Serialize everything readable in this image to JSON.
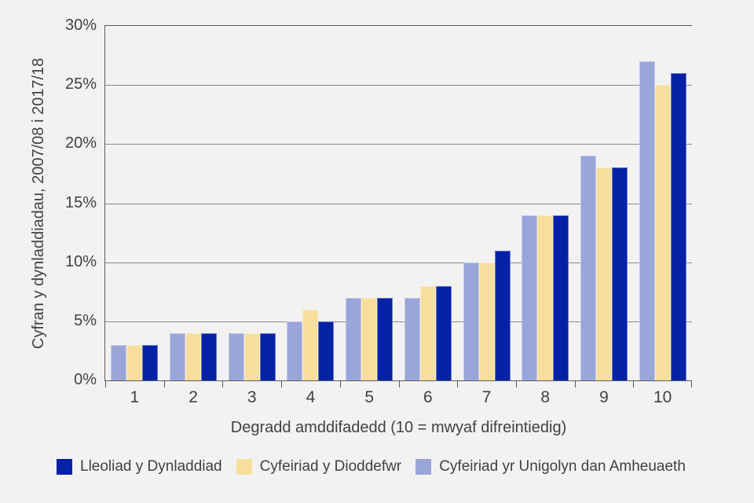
{
  "style": {
    "background": "#f2f2f2",
    "grid_color": "#8b8b8b",
    "axis_color": "#5b5b5b",
    "text_color": "#3f4145"
  },
  "chart_data": {
    "type": "bar",
    "title": "",
    "xlabel": "Degradd amddifadedd (10 = mwyaf difreintiedig)",
    "ylabel": "Cyfran y dynladdiadau, 2007/08 i 2017/18",
    "categories": [
      "1",
      "2",
      "3",
      "4",
      "5",
      "6",
      "7",
      "8",
      "9",
      "10"
    ],
    "series": [
      {
        "name": "Lleoliad y Dynladdiad",
        "color": "#0522a6",
        "values": [
          3,
          4,
          4,
          5,
          7,
          8,
          11,
          14,
          18,
          26
        ]
      },
      {
        "name": "Cyfeiriad y Dioddefwr",
        "color": "#f6df9d",
        "values": [
          3,
          4,
          4,
          6,
          7,
          8,
          10,
          14,
          18,
          25
        ]
      },
      {
        "name": "Cyfeiriad yr Unigolyn dan Amheuaeth",
        "color": "#9aa6d9",
        "values": [
          3,
          4,
          4,
          5,
          7,
          7,
          10,
          14,
          19,
          27
        ]
      }
    ],
    "bar_draw_order": [
      2,
      1,
      0
    ],
    "ylim": [
      0,
      30
    ],
    "ytick_step": 5,
    "ytick_labels": [
      "0%",
      "5%",
      "10%",
      "15%",
      "20%",
      "25%",
      "30%"
    ],
    "grid": "horizontal",
    "legend_position": "bottom",
    "unit": "%"
  }
}
